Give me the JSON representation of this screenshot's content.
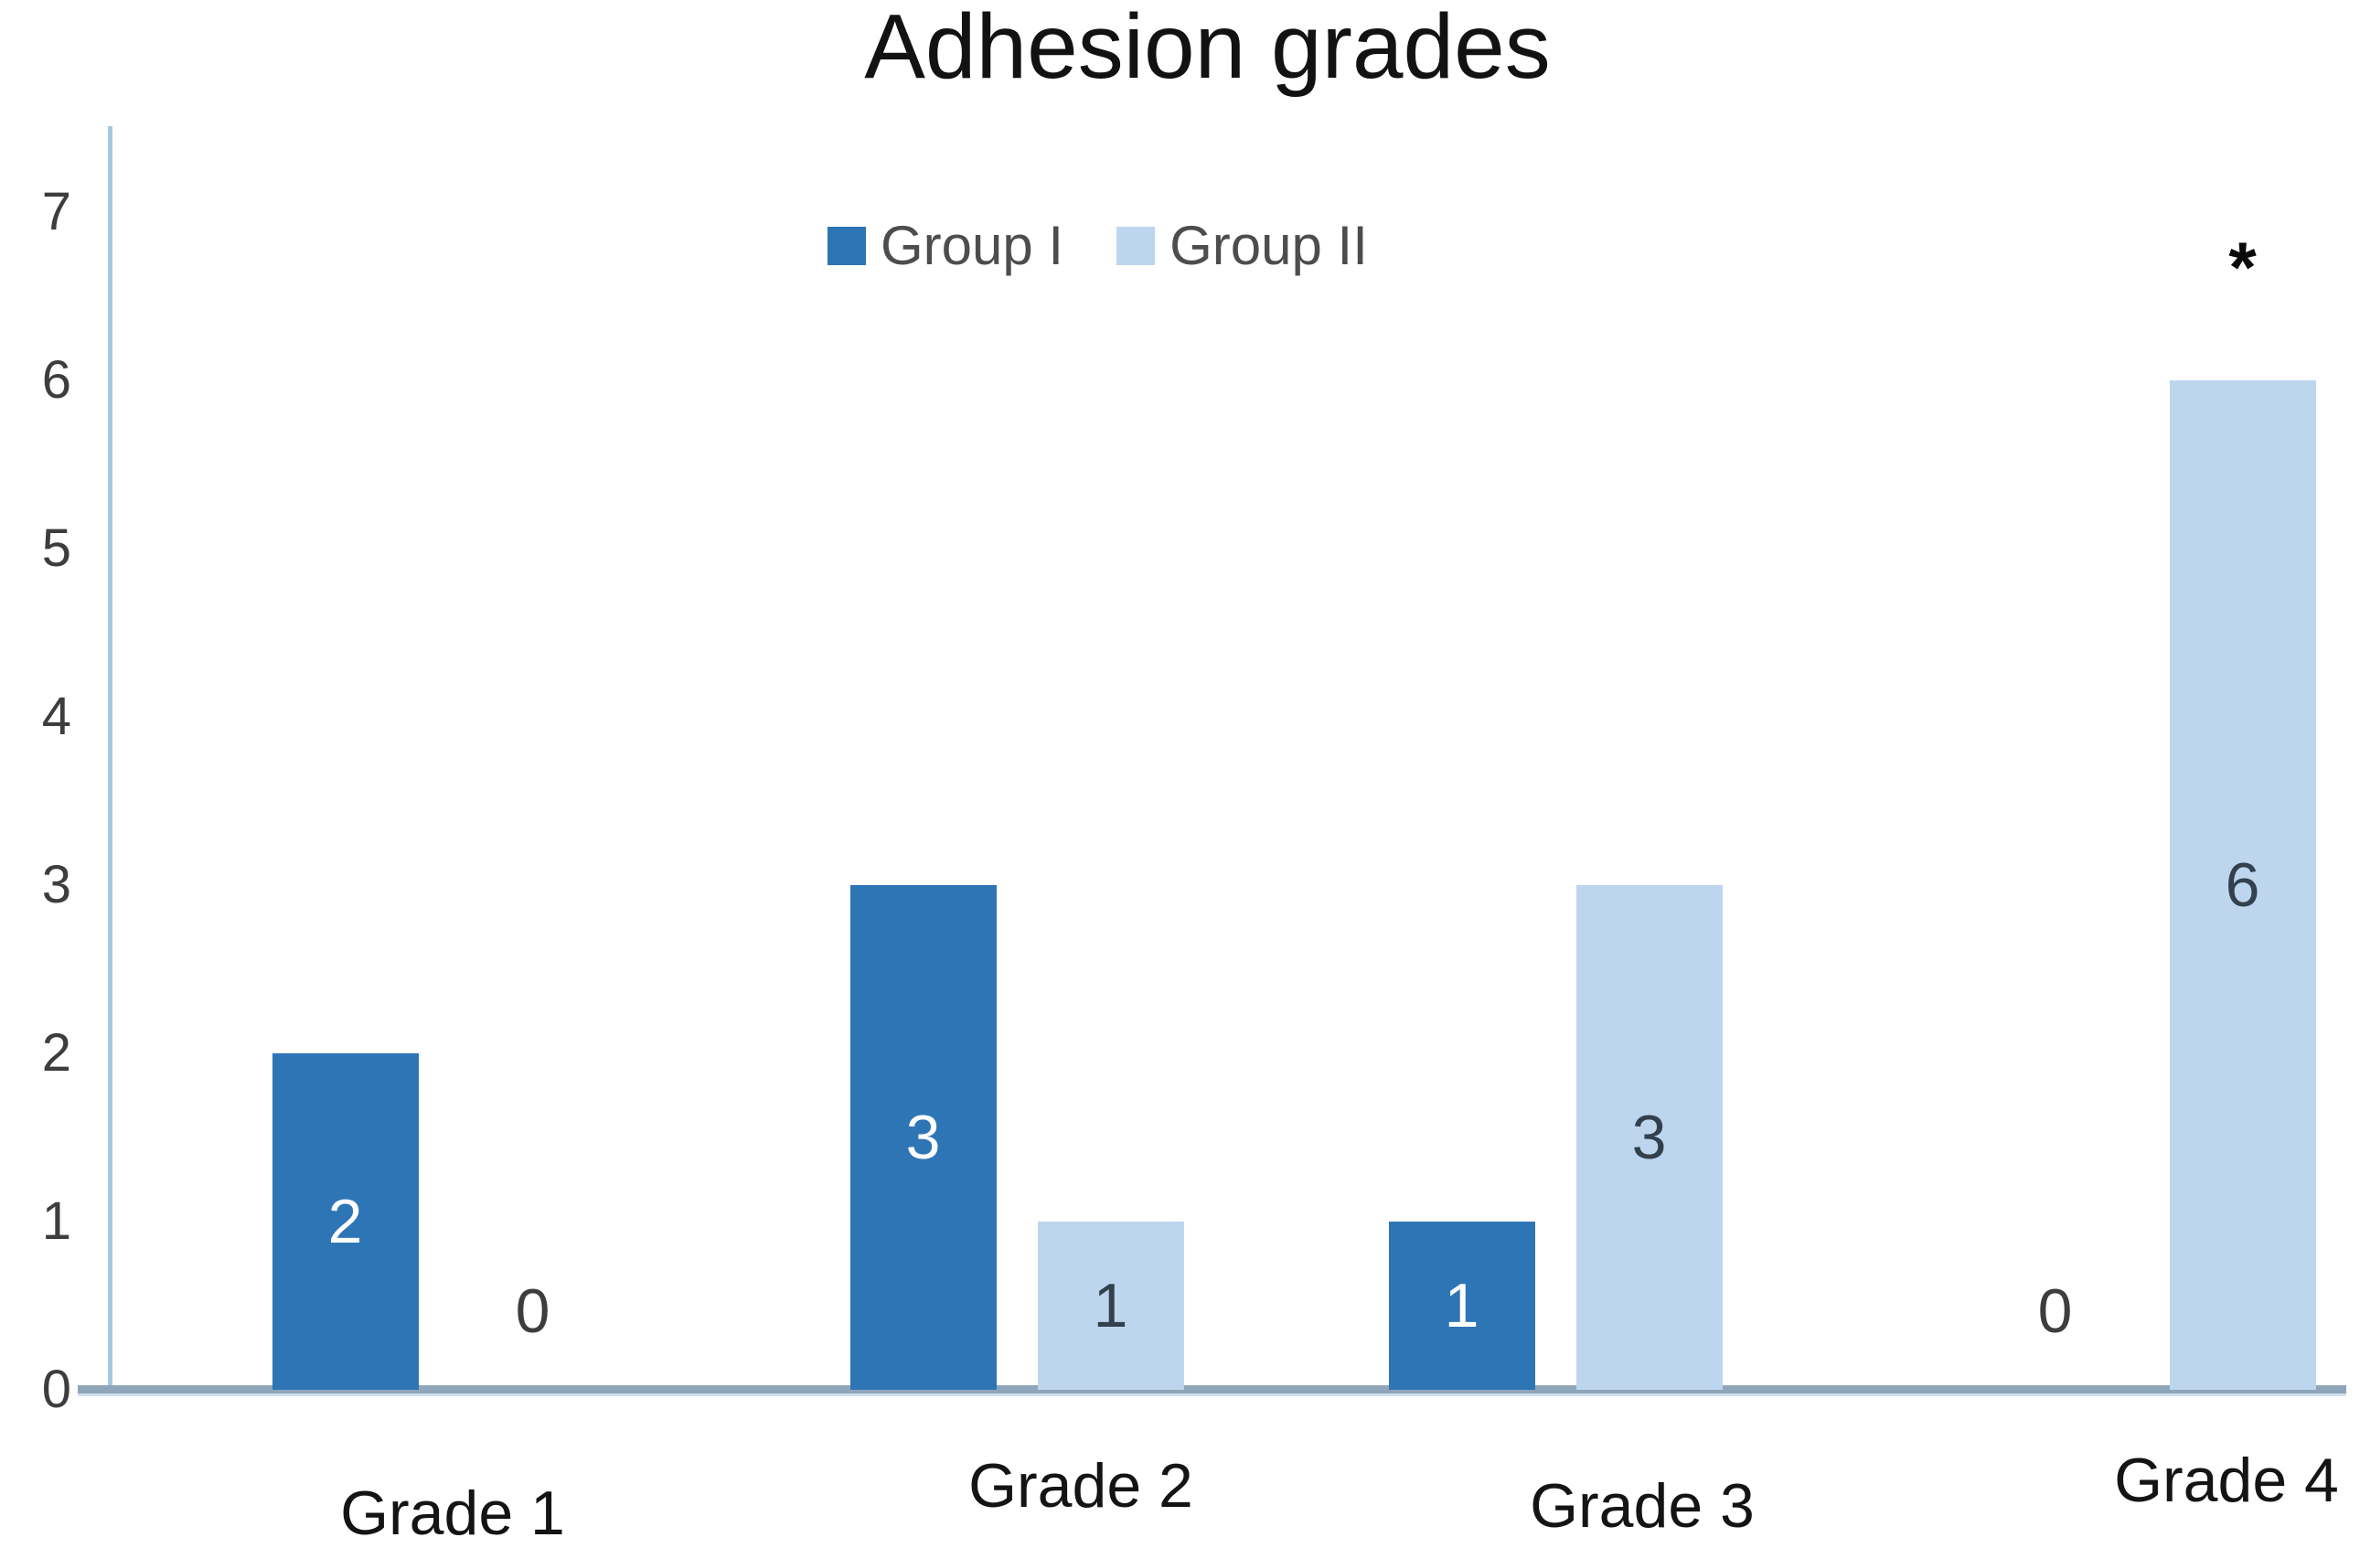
{
  "title": "Adhesion grades",
  "legend": [
    {
      "label": "Group I",
      "color": "#2e75b6"
    },
    {
      "label": "Group II",
      "color": "#bdd6ee"
    }
  ],
  "chart_data": {
    "type": "bar",
    "title": "Adhesion grades",
    "categories": [
      "Grade 1",
      "Grade 2",
      "Grade 3",
      "Grade 4"
    ],
    "series": [
      {
        "name": "Group I",
        "color": "#2e75b6",
        "values": [
          2,
          3,
          1,
          0
        ]
      },
      {
        "name": "Group II",
        "color": "#bdd6ee",
        "values": [
          0,
          1,
          3,
          6
        ]
      }
    ],
    "y_ticks": [
      0,
      1,
      2,
      3,
      4,
      5,
      6,
      7
    ],
    "ylim": [
      0,
      7.5
    ],
    "xlabel": "",
    "ylabel": "",
    "grid": false,
    "data_labels": "center",
    "legend_position": "top-center",
    "annotations": [
      {
        "text": "*",
        "category": "Grade 4",
        "series": "Group II",
        "meaning": "significance marker"
      }
    ]
  },
  "colors": {
    "series_group_i": "#2e75b6",
    "series_group_ii": "#bdd6ee",
    "y_axis_line": "#a7c9e0",
    "x_axis_line": "#8fa6ba",
    "x_axis_line_edge": "#cfe0ef",
    "title_text": "#121212",
    "tick_text": "#3d3d3d",
    "x_label_text": "#141414",
    "legend_text": "#4d4d4d",
    "label_on_dark": "#ffffff",
    "label_on_light": "#33404d",
    "annotation_text": "#0a0a0a",
    "background": "#ffffff"
  }
}
